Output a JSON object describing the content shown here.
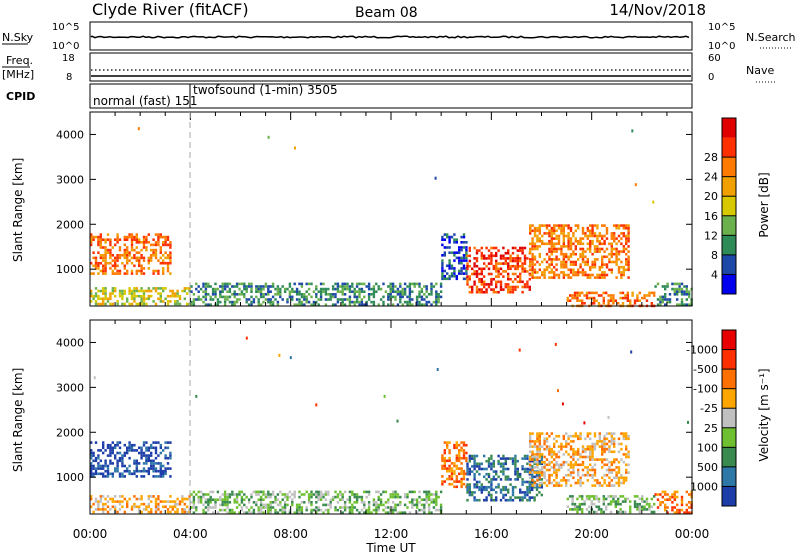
{
  "header": {
    "station": "Clyde River (fitACF)",
    "beam": "Beam 08",
    "date": "14/Nov/2018"
  },
  "nsky_panel": {
    "left_label": "N.Sky",
    "left_ticks": [
      "10^5",
      "10^0"
    ],
    "right_ticks": [
      "10^5",
      "10^0"
    ],
    "right_label": "N.Search"
  },
  "freq_panel": {
    "left_label_1": "Freq.",
    "left_label_2": "[MHz]",
    "left_ticks": [
      "18",
      "8"
    ],
    "right_ticks": [
      "60",
      "0"
    ],
    "right_label": "Nave"
  },
  "cpid_panel": {
    "label": "CPID",
    "modes": [
      {
        "text": "normal (fast) 151",
        "start_hour": 0
      },
      {
        "text": "twofsound (1-min) 3505",
        "start_hour": 4.0
      }
    ]
  },
  "power_colorbar": {
    "title": "Power [dB]",
    "ticks": [
      "4",
      "8",
      "12",
      "16",
      "20",
      "24",
      "28"
    ],
    "colors": [
      "#0000ee",
      "#1e48a8",
      "#2e8b57",
      "#6ab04c",
      "#d8c800",
      "#f0a000",
      "#ff7a00",
      "#ff3000",
      "#e00000"
    ]
  },
  "velocity_colorbar": {
    "title": "Velocity [m s⁻¹]",
    "ticks": [
      "1000",
      "500",
      "100",
      "25",
      "-25",
      "-100",
      "-500",
      "-1000"
    ],
    "colors": [
      "#1d3ea8",
      "#2e78a8",
      "#3a8a50",
      "#6ec030",
      "#c0c0c0",
      "#ffa500",
      "#ff7000",
      "#ff3000",
      "#e80000"
    ]
  },
  "time_axis": {
    "ticks": [
      "00:00",
      "04:00",
      "08:00",
      "12:00",
      "16:00",
      "20:00",
      "00:00"
    ],
    "title": "Time UT"
  },
  "chart_data": [
    {
      "type": "heatmap",
      "name": "power",
      "ylabel": "Slant Range [km]",
      "xlabel": "",
      "xlim_hours": [
        0,
        24
      ],
      "ylim": [
        180,
        4500
      ],
      "yticks": [
        1000,
        2000,
        3000,
        4000
      ],
      "colorbar": "Power [dB]",
      "echo_regions": [
        {
          "t0": 0.0,
          "t1": 3.2,
          "r0": 900,
          "r1": 1800,
          "level": 6
        },
        {
          "t0": 0.0,
          "t1": 4.0,
          "r0": 250,
          "r1": 600,
          "level": 4
        },
        {
          "t0": 4.0,
          "t1": 14.0,
          "r0": 200,
          "r1": 700,
          "level": 2
        },
        {
          "t0": 14.0,
          "t1": 15.0,
          "r0": 800,
          "r1": 1800,
          "level": 1
        },
        {
          "t0": 15.0,
          "t1": 17.5,
          "r0": 500,
          "r1": 1500,
          "level": 7
        },
        {
          "t0": 17.5,
          "t1": 21.5,
          "r0": 800,
          "r1": 2000,
          "level": 6
        },
        {
          "t0": 19.0,
          "t1": 22.5,
          "r0": 200,
          "r1": 500,
          "level": 6
        },
        {
          "t0": 22.5,
          "t1": 24.0,
          "r0": 200,
          "r1": 700,
          "level": 2
        }
      ]
    },
    {
      "type": "heatmap",
      "name": "velocity",
      "ylabel": "Slant Range [km]",
      "xlabel": "Time UT",
      "xlim_hours": [
        0,
        24
      ],
      "ylim": [
        180,
        4500
      ],
      "yticks": [
        1000,
        2000,
        3000,
        4000
      ],
      "colorbar": "Velocity [m s⁻¹]",
      "echo_regions": [
        {
          "t0": 0.0,
          "t1": 3.2,
          "r0": 1000,
          "r1": 1800,
          "level": 0
        },
        {
          "t0": 0.0,
          "t1": 4.0,
          "r0": 250,
          "r1": 600,
          "level": 5
        },
        {
          "t0": 4.0,
          "t1": 14.0,
          "r0": 200,
          "r1": 700,
          "level": 3
        },
        {
          "t0": 14.0,
          "t1": 15.0,
          "r0": 800,
          "r1": 1800,
          "level": 6
        },
        {
          "t0": 15.0,
          "t1": 18.0,
          "r0": 500,
          "r1": 1500,
          "level": 1
        },
        {
          "t0": 17.5,
          "t1": 21.5,
          "r0": 800,
          "r1": 2000,
          "level": 5
        },
        {
          "t0": 19.0,
          "t1": 22.5,
          "r0": 200,
          "r1": 600,
          "level": 3
        },
        {
          "t0": 22.5,
          "t1": 24.0,
          "r0": 200,
          "r1": 700,
          "level": 6
        }
      ]
    }
  ]
}
